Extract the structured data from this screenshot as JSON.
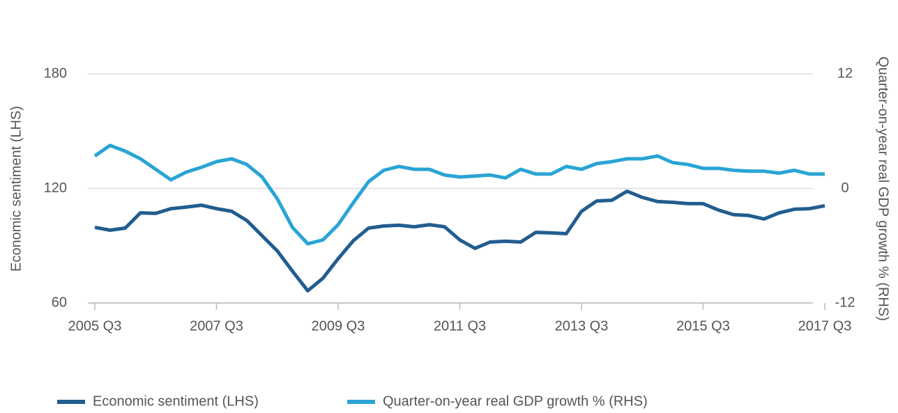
{
  "chart_data": {
    "type": "line",
    "categories": [
      "2005 Q3",
      null,
      null,
      null,
      null,
      null,
      null,
      null,
      "2007 Q3",
      null,
      null,
      null,
      null,
      null,
      null,
      null,
      "2009 Q3",
      null,
      null,
      null,
      null,
      null,
      null,
      null,
      "2011 Q3",
      null,
      null,
      null,
      null,
      null,
      null,
      null,
      "2013 Q3",
      null,
      null,
      null,
      null,
      null,
      null,
      null,
      "2015 Q3",
      null,
      null,
      null,
      null,
      null,
      null,
      null,
      "2017 Q3"
    ],
    "ylabel": "Economic sentiment (LHS)",
    "y2label": "Quarter-on-year real GDP growth % (RHS)",
    "ylim": [
      60,
      180
    ],
    "yticks": [
      60,
      120,
      180
    ],
    "y2lim": [
      -12,
      12
    ],
    "y2ticks": [
      -12,
      0,
      12
    ],
    "grid": true,
    "legend": "bottom",
    "series": [
      {
        "name": "Economic sentiment (LHS)",
        "color": "#215d8f",
        "values": [
          99.6,
          98.1,
          99.2,
          107.2,
          106.9,
          109.4,
          110.2,
          111.2,
          109.4,
          108.0,
          103.2,
          95.2,
          87.2,
          76.6,
          66.4,
          73.0,
          83.2,
          92.6,
          99.2,
          100.3,
          100.7,
          99.9,
          101.0,
          99.9,
          93.0,
          88.6,
          91.9,
          92.3,
          91.9,
          97.0,
          96.7,
          96.3,
          108.0,
          113.4,
          113.8,
          118.5,
          115.3,
          113.1,
          112.7,
          112.0,
          112.0,
          108.7,
          106.2,
          105.8,
          104.0,
          107.2,
          109.1,
          109.4,
          110.9
        ]
      },
      {
        "name": "Quarter-on-year real GDP growth % (RHS)",
        "color": "#2aa4d5",
        "axis": "y2",
        "values": [
          3.4,
          4.5,
          3.9,
          3.1,
          2.0,
          0.9,
          1.7,
          2.2,
          2.8,
          3.1,
          2.5,
          1.2,
          -1.1,
          -4.1,
          -5.8,
          -5.4,
          -3.8,
          -1.5,
          0.7,
          1.9,
          2.3,
          2.0,
          2.0,
          1.4,
          1.2,
          1.3,
          1.4,
          1.1,
          2.0,
          1.5,
          1.5,
          2.3,
          2.0,
          2.6,
          2.8,
          3.1,
          3.1,
          3.4,
          2.7,
          2.5,
          2.1,
          2.1,
          1.9,
          1.8,
          1.8,
          1.6,
          1.9,
          1.5,
          1.5
        ]
      }
    ]
  }
}
